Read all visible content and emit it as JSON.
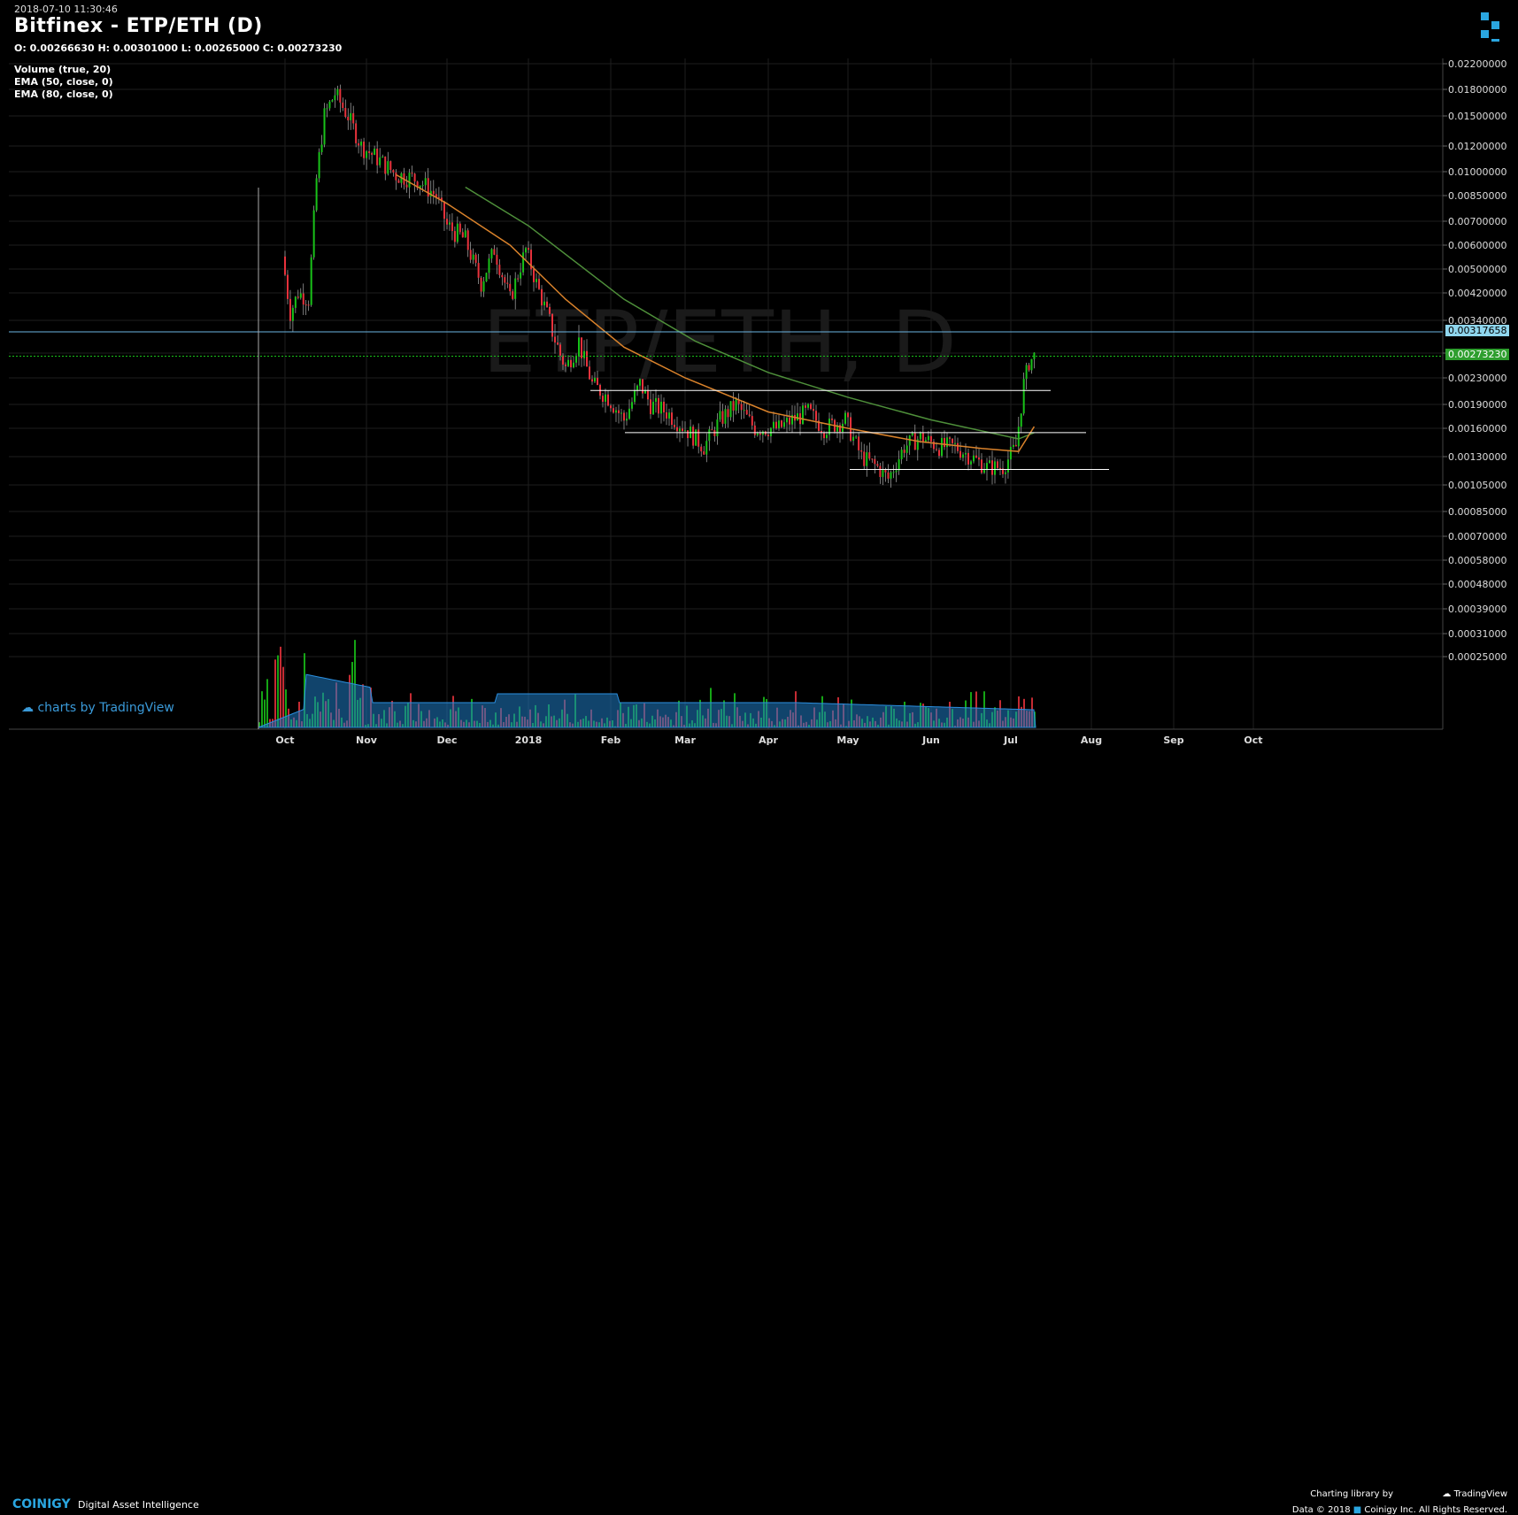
{
  "header": {
    "timestamp": "2018-07-10 11:30:46",
    "title": "Bitfinex - ETP/ETH (D)",
    "ohlc": "O: 0.00266630 H: 0.00301000 L: 0.00265000 C: 0.00273230"
  },
  "indicators": [
    "Volume (true, 20)",
    "EMA (50, close, 0)",
    "EMA (80, close, 0)"
  ],
  "watermark": "ETP/ETH, D",
  "badges": {
    "charts_by": "charts by TradingView",
    "charting_library_by": "Charting library by",
    "tradingview": "TradingView",
    "data_copyright": "Data © 2018",
    "coinigy_rights": "Coinigy Inc. All Rights Reserved.",
    "brand": "COINIGY",
    "tagline": "Digital Asset Intelligence"
  },
  "colors": {
    "up": "#19c219",
    "down": "#e8323c",
    "ema50": "#d9822b",
    "ema80": "#4e8f3a",
    "volume_ma": "#1f7bc4",
    "hline": "#ffffff",
    "current_line": "#6ab4e2",
    "last_price_tag": "#2e9e2e",
    "level_tag": "#8fd6ee"
  },
  "chart_data": {
    "type": "candlestick",
    "y_scale": "log",
    "y_ticks": [
      "0.02200000",
      "0.01800000",
      "0.01500000",
      "0.01200000",
      "0.01000000",
      "0.00850000",
      "0.00700000",
      "0.00600000",
      "0.00500000",
      "0.00420000",
      "0.00340000",
      "0.00280000",
      "0.00230000",
      "0.00190000",
      "0.00160000",
      "0.00130000",
      "0.00105000",
      "0.00085000",
      "0.00070000",
      "0.00058000",
      "0.00048000",
      "0.00039000",
      "0.00031000",
      "0.00025000"
    ],
    "x_ticks": [
      "Oct",
      "Nov",
      "Dec",
      "2018",
      "Feb",
      "Mar",
      "Apr",
      "May",
      "Jun",
      "Jul",
      "Aug",
      "Sep",
      "Oct"
    ],
    "price_tags": {
      "level": "0.00317658",
      "last": "0.00273230"
    },
    "horizontal_lines": [
      0.00317658,
      0.0027323,
      0.0021,
      0.00155,
      0.00118
    ],
    "close_path": [
      {
        "date": "2017-09-26",
        "close": 0.0055
      },
      {
        "date": "2017-09-29",
        "close": 0.0048
      },
      {
        "date": "2017-10-03",
        "close": 0.0036
      },
      {
        "date": "2017-10-06",
        "close": 0.0042
      },
      {
        "date": "2017-10-10",
        "close": 0.004
      },
      {
        "date": "2017-10-13",
        "close": 0.0095
      },
      {
        "date": "2017-10-16",
        "close": 0.015
      },
      {
        "date": "2017-10-20",
        "close": 0.0175
      },
      {
        "date": "2017-10-25",
        "close": 0.015
      },
      {
        "date": "2017-10-30",
        "close": 0.012
      },
      {
        "date": "2017-11-05",
        "close": 0.011
      },
      {
        "date": "2017-11-12",
        "close": 0.0098
      },
      {
        "date": "2017-11-20",
        "close": 0.0095
      },
      {
        "date": "2017-11-27",
        "close": 0.0085
      },
      {
        "date": "2017-12-01",
        "close": 0.0068
      },
      {
        "date": "2017-12-08",
        "close": 0.0062
      },
      {
        "date": "2017-12-14",
        "close": 0.0045
      },
      {
        "date": "2017-12-19",
        "close": 0.0058
      },
      {
        "date": "2017-12-25",
        "close": 0.004
      },
      {
        "date": "2017-12-31",
        "close": 0.0058
      },
      {
        "date": "2018-01-04",
        "close": 0.0045
      },
      {
        "date": "2018-01-10",
        "close": 0.0032
      },
      {
        "date": "2018-01-15",
        "close": 0.0025
      },
      {
        "date": "2018-01-20",
        "close": 0.003
      },
      {
        "date": "2018-01-25",
        "close": 0.0022
      },
      {
        "date": "2018-01-31",
        "close": 0.002
      },
      {
        "date": "2018-02-06",
        "close": 0.0017
      },
      {
        "date": "2018-02-12",
        "close": 0.0022
      },
      {
        "date": "2018-02-16",
        "close": 0.0019
      },
      {
        "date": "2018-02-22",
        "close": 0.0018
      },
      {
        "date": "2018-03-01",
        "close": 0.0016
      },
      {
        "date": "2018-03-08",
        "close": 0.0014
      },
      {
        "date": "2018-03-14",
        "close": 0.0017
      },
      {
        "date": "2018-03-20",
        "close": 0.0019
      },
      {
        "date": "2018-03-27",
        "close": 0.0016
      },
      {
        "date": "2018-04-05",
        "close": 0.0016
      },
      {
        "date": "2018-04-10",
        "close": 0.0017
      },
      {
        "date": "2018-04-16",
        "close": 0.0018
      },
      {
        "date": "2018-04-22",
        "close": 0.0016
      },
      {
        "date": "2018-04-30",
        "close": 0.0017
      },
      {
        "date": "2018-05-06",
        "close": 0.0013
      },
      {
        "date": "2018-05-12",
        "close": 0.0012
      },
      {
        "date": "2018-05-16",
        "close": 0.0011
      },
      {
        "date": "2018-05-22",
        "close": 0.0014
      },
      {
        "date": "2018-05-28",
        "close": 0.0015
      },
      {
        "date": "2018-06-04",
        "close": 0.0014
      },
      {
        "date": "2018-06-10",
        "close": 0.0014
      },
      {
        "date": "2018-06-16",
        "close": 0.0013
      },
      {
        "date": "2018-06-22",
        "close": 0.0012
      },
      {
        "date": "2018-06-28",
        "close": 0.0012
      },
      {
        "date": "2018-07-03",
        "close": 0.0014
      },
      {
        "date": "2018-07-06",
        "close": 0.0022
      },
      {
        "date": "2018-07-08",
        "close": 0.0026
      },
      {
        "date": "2018-07-10",
        "close": 0.0027323
      }
    ],
    "ema50_path": [
      {
        "date": "2017-11-12",
        "v": 0.0098
      },
      {
        "date": "2017-12-01",
        "v": 0.008
      },
      {
        "date": "2017-12-25",
        "v": 0.006
      },
      {
        "date": "2018-01-15",
        "v": 0.004
      },
      {
        "date": "2018-02-06",
        "v": 0.0029
      },
      {
        "date": "2018-03-01",
        "v": 0.0023
      },
      {
        "date": "2018-04-01",
        "v": 0.0018
      },
      {
        "date": "2018-05-01",
        "v": 0.0016
      },
      {
        "date": "2018-05-28",
        "v": 0.00145
      },
      {
        "date": "2018-06-20",
        "v": 0.00138
      },
      {
        "date": "2018-07-04",
        "v": 0.00135
      },
      {
        "date": "2018-07-10",
        "v": 0.00162
      }
    ],
    "ema80_path": [
      {
        "date": "2017-12-08",
        "v": 0.009
      },
      {
        "date": "2018-01-01",
        "v": 0.0068
      },
      {
        "date": "2018-02-06",
        "v": 0.004
      },
      {
        "date": "2018-03-05",
        "v": 0.003
      },
      {
        "date": "2018-04-01",
        "v": 0.0024
      },
      {
        "date": "2018-05-01",
        "v": 0.002
      },
      {
        "date": "2018-06-01",
        "v": 0.0017
      },
      {
        "date": "2018-07-04",
        "v": 0.00148
      },
      {
        "date": "2018-07-10",
        "v": 0.00155
      }
    ]
  }
}
